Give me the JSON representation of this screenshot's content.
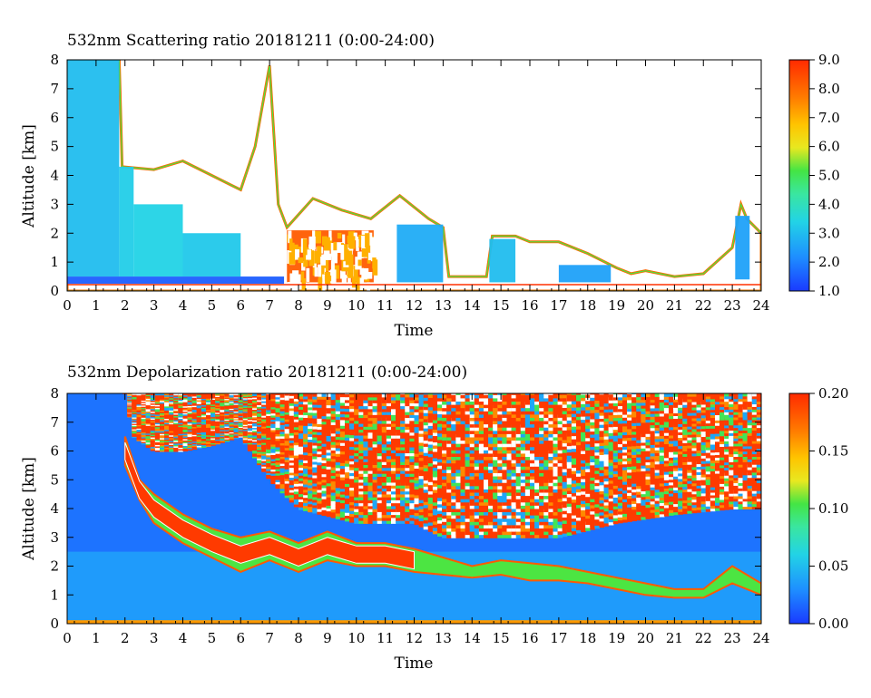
{
  "chart_data": [
    {
      "type": "heatmap",
      "title": "532nm Scattering ratio  20181211 (0:00-24:00)",
      "xlabel": "Time",
      "ylabel": "Altitude [km]",
      "xlim": [
        0,
        24
      ],
      "ylim": [
        0,
        8
      ],
      "x_ticks": [
        0,
        1,
        2,
        3,
        4,
        5,
        6,
        7,
        8,
        9,
        10,
        11,
        12,
        13,
        14,
        15,
        16,
        17,
        18,
        19,
        20,
        21,
        22,
        23,
        24
      ],
      "y_ticks": [
        0,
        1,
        2,
        3,
        4,
        5,
        6,
        7,
        8
      ],
      "colorbar": {
        "min": 1.0,
        "max": 9.0,
        "tick_labels": [
          "1.0",
          "2.0",
          "3.0",
          "4.0",
          "5.0",
          "6.0",
          "7.0",
          "8.0",
          "9.0"
        ]
      },
      "regions": [
        {
          "x0": 0.0,
          "x1": 1.8,
          "y0": 0.5,
          "y1": 8.0,
          "value": 3.0
        },
        {
          "x0": 1.8,
          "x1": 2.3,
          "y0": 0.5,
          "y1": 4.3,
          "value": 3.3
        },
        {
          "x0": 2.3,
          "x1": 4.0,
          "y0": 0.5,
          "y1": 3.0,
          "value": 3.4
        },
        {
          "x0": 4.0,
          "x1": 6.0,
          "y0": 0.5,
          "y1": 2.0,
          "value": 3.2
        },
        {
          "x0": 0.0,
          "x1": 7.5,
          "y0": 0.25,
          "y1": 0.5,
          "value": 1.5
        },
        {
          "x0": 7.6,
          "x1": 10.6,
          "y0": 0.3,
          "y1": 2.1,
          "value": 8.2
        },
        {
          "x0": 11.4,
          "x1": 13.0,
          "y0": 0.3,
          "y1": 2.3,
          "value": 2.7
        },
        {
          "x0": 14.6,
          "x1": 15.5,
          "y0": 0.3,
          "y1": 1.8,
          "value": 3.0
        },
        {
          "x0": 17.0,
          "x1": 18.8,
          "y0": 0.3,
          "y1": 0.9,
          "value": 2.5
        },
        {
          "x0": 23.1,
          "x1": 23.6,
          "y0": 0.4,
          "y1": 2.6,
          "value": 2.5
        }
      ],
      "cloud_top_km": [
        [
          0.0,
          8.0
        ],
        [
          1.8,
          8.0
        ],
        [
          1.9,
          4.3
        ],
        [
          3.0,
          4.2
        ],
        [
          4.0,
          4.5
        ],
        [
          5.0,
          4.0
        ],
        [
          6.0,
          3.5
        ],
        [
          6.5,
          5.0
        ],
        [
          7.0,
          7.8
        ],
        [
          7.3,
          3.0
        ],
        [
          7.6,
          2.2
        ],
        [
          8.5,
          3.2
        ],
        [
          9.5,
          2.8
        ],
        [
          10.5,
          2.5
        ],
        [
          11.5,
          3.3
        ],
        [
          12.5,
          2.5
        ],
        [
          13.0,
          2.2
        ],
        [
          13.2,
          0.5
        ],
        [
          14.5,
          0.5
        ],
        [
          14.7,
          1.9
        ],
        [
          15.5,
          1.9
        ],
        [
          16.0,
          1.7
        ],
        [
          17.0,
          1.7
        ],
        [
          18.0,
          1.3
        ],
        [
          19.0,
          0.8
        ],
        [
          19.5,
          0.6
        ],
        [
          20.0,
          0.7
        ],
        [
          21.0,
          0.5
        ],
        [
          22.0,
          0.6
        ],
        [
          23.0,
          1.5
        ],
        [
          23.3,
          3.0
        ],
        [
          23.5,
          2.5
        ],
        [
          24.0,
          2.0
        ]
      ]
    },
    {
      "type": "heatmap",
      "title": "532nm Depolarization ratio  20181211 (0:00-24:00)",
      "xlabel": "Time",
      "ylabel": "Altitude [km]",
      "xlim": [
        0,
        24
      ],
      "ylim": [
        0,
        8
      ],
      "x_ticks": [
        0,
        1,
        2,
        3,
        4,
        5,
        6,
        7,
        8,
        9,
        10,
        11,
        12,
        13,
        14,
        15,
        16,
        17,
        18,
        19,
        20,
        21,
        22,
        23,
        24
      ],
      "y_ticks": [
        0,
        1,
        2,
        3,
        4,
        5,
        6,
        7,
        8
      ],
      "colorbar": {
        "min": 0.0,
        "max": 0.2,
        "tick_labels": [
          "0.00",
          "0.05",
          "0.10",
          "0.15",
          "0.20"
        ]
      },
      "noise_above_km": [
        [
          2.0,
          8.0
        ],
        [
          2.3,
          6.5
        ],
        [
          3.0,
          6.0
        ],
        [
          4.0,
          6.0
        ],
        [
          5.0,
          6.2
        ],
        [
          6.0,
          6.5
        ],
        [
          7.0,
          5.0
        ],
        [
          8.0,
          4.0
        ],
        [
          10.0,
          3.5
        ],
        [
          12.0,
          3.5
        ],
        [
          13.0,
          3.0
        ],
        [
          15.0,
          3.0
        ],
        [
          17.0,
          3.0
        ],
        [
          19.0,
          3.5
        ],
        [
          21.0,
          3.8
        ],
        [
          23.0,
          4.0
        ],
        [
          24.0,
          4.0
        ]
      ],
      "layer_band_km": [
        [
          2.0,
          5.5,
          6.5
        ],
        [
          2.5,
          4.3,
          5.0
        ],
        [
          3.0,
          3.5,
          4.5
        ],
        [
          4.0,
          2.8,
          3.8
        ],
        [
          5.0,
          2.3,
          3.3
        ],
        [
          6.0,
          1.8,
          3.0
        ],
        [
          7.0,
          2.2,
          3.2
        ],
        [
          8.0,
          1.8,
          2.8
        ],
        [
          9.0,
          2.2,
          3.2
        ],
        [
          10.0,
          2.0,
          2.8
        ],
        [
          11.0,
          2.0,
          2.8
        ],
        [
          12.0,
          1.8,
          2.6
        ],
        [
          13.0,
          1.7,
          2.3
        ],
        [
          14.0,
          1.6,
          2.0
        ],
        [
          15.0,
          1.7,
          2.2
        ],
        [
          16.0,
          1.5,
          2.1
        ],
        [
          17.0,
          1.5,
          2.0
        ],
        [
          18.0,
          1.4,
          1.8
        ],
        [
          19.0,
          1.2,
          1.6
        ],
        [
          20.0,
          1.0,
          1.4
        ],
        [
          21.0,
          0.9,
          1.2
        ],
        [
          22.0,
          0.9,
          1.2
        ],
        [
          23.0,
          1.4,
          2.0
        ],
        [
          24.0,
          1.0,
          1.4
        ]
      ]
    }
  ]
}
